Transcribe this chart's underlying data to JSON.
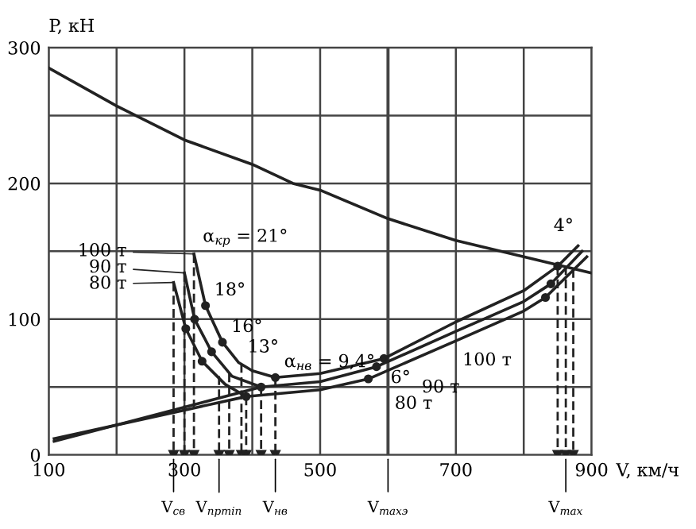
{
  "chart_data": {
    "type": "line",
    "xlabel": "V, км/ч",
    "ylabel": "P, кН",
    "xlim": [
      100,
      900
    ],
    "ylim": [
      0,
      300
    ],
    "xticks": [
      100,
      {
        "value": 200,
        "label": null
      },
      300,
      {
        "value": 400,
        "label": null
      },
      500,
      {
        "value": 600,
        "label": null
      },
      700,
      {
        "value": 800,
        "label": null
      },
      900
    ],
    "yticks": [
      0,
      {
        "value": 50,
        "label": null
      },
      100,
      {
        "value": 150,
        "label": null
      },
      200,
      {
        "value": 250,
        "label": null
      },
      300
    ],
    "grid": true,
    "legend": "left",
    "line_style": "solid",
    "marker": "none",
    "series": [
      {
        "color": "#222222",
        "x": [
          100,
          200,
          300,
          400,
          460,
          500,
          600,
          700,
          800,
          900
        ],
        "values": [
          285,
          257,
          232,
          214,
          200,
          195,
          174,
          158,
          146,
          134
        ]
      },
      {
        "name": "100 т",
        "color": "#222222",
        "x": [
          314,
          331,
          356,
          380,
          400,
          434,
          500,
          594,
          700,
          800,
          850,
          880
        ],
        "values": [
          148,
          110,
          83,
          68,
          62,
          57,
          60,
          71,
          98,
          121,
          139,
          154
        ]
      },
      {
        "name": "90 т",
        "color": "#222222",
        "x": [
          300,
          315,
          340,
          370,
          413,
          500,
          583,
          700,
          800,
          840,
          886
        ],
        "values": [
          134,
          100,
          76,
          58,
          50,
          54,
          65,
          91,
          113,
          126,
          150
        ]
      },
      {
        "name": "80 т",
        "color": "#222222",
        "x": [
          284,
          302,
          326,
          360,
          391,
          500,
          571,
          700,
          800,
          832,
          893
        ],
        "values": [
          127,
          93,
          69,
          52,
          43,
          48,
          56,
          84,
          106,
          116,
          146
        ]
      },
      {
        "color": "#222222",
        "x": [
          108,
          391
        ],
        "values": [
          12,
          43
        ]
      },
      {
        "color": "#222222",
        "x": [
          108,
          413
        ],
        "values": [
          10,
          50
        ]
      },
      {
        "type": "scatter",
        "marker": "circle",
        "color": "#222222",
        "x": [
          331,
          356,
          434,
          594,
          850,
          315,
          340,
          413,
          583,
          840,
          302,
          326,
          391,
          571,
          832
        ],
        "values": [
          110,
          83,
          57,
          71,
          139,
          100,
          76,
          50,
          65,
          126,
          93,
          69,
          43,
          56,
          116
        ]
      },
      {
        "color": "#222222",
        "line_style": "dashed",
        "marker": "triangle",
        "x": [
          284,
          284
        ],
        "values": [
          127,
          0
        ]
      },
      {
        "color": "#222222",
        "line_style": "dashed",
        "marker": "triangle",
        "x": [
          300,
          300
        ],
        "values": [
          134,
          0
        ]
      },
      {
        "color": "#222222",
        "line_style": "dashed",
        "marker": "triangle",
        "x": [
          314,
          314
        ],
        "values": [
          148,
          0
        ]
      },
      {
        "color": "#222222",
        "line_style": "dashed",
        "marker": "triangle",
        "x": [
          351,
          351
        ],
        "values": [
          58,
          0
        ]
      },
      {
        "color": "#222222",
        "line_style": "dashed",
        "marker": "triangle",
        "x": [
          366,
          366
        ],
        "values": [
          60,
          0
        ]
      },
      {
        "color": "#222222",
        "line_style": "dashed",
        "marker": "triangle",
        "x": [
          384,
          384
        ],
        "values": [
          67,
          0
        ]
      },
      {
        "color": "#222222",
        "line_style": "dashed",
        "marker": "triangle",
        "x": [
          391,
          391
        ],
        "values": [
          43,
          0
        ]
      },
      {
        "color": "#222222",
        "line_style": "dashed",
        "marker": "triangle",
        "x": [
          413,
          413
        ],
        "values": [
          50,
          0
        ]
      },
      {
        "color": "#222222",
        "line_style": "dashed",
        "marker": "triangle",
        "x": [
          434,
          434
        ],
        "values": [
          57,
          0
        ]
      },
      {
        "color": "#222222",
        "line_style": "dashed",
        "marker": "triangle",
        "x": [
          850,
          850
        ],
        "values": [
          139,
          0
        ]
      },
      {
        "color": "#222222",
        "line_style": "dashed",
        "marker": "triangle",
        "x": [
          862,
          862
        ],
        "values": [
          139,
          0
        ]
      },
      {
        "color": "#222222",
        "line_style": "dashed",
        "marker": "triangle",
        "x": [
          873,
          873
        ],
        "values": [
          137,
          0
        ]
      }
    ],
    "ref_lines": [
      {
        "axis": "x",
        "value": 600,
        "label": "V$_{maxэ}$",
        "color": "#444444"
      }
    ],
    "annotations": [
      {
        "text": "α$_{кр}$ = 21°",
        "x": 314,
        "y": 148
      },
      {
        "text": "18°",
        "x": 331,
        "y": 110
      },
      {
        "text": "16°",
        "x": 356,
        "y": 83
      },
      {
        "text": "13°",
        "x": 380,
        "y": 68
      },
      {
        "text": "α$_{нв}$ = 9,4°",
        "x": 434,
        "y": 57
      },
      {
        "text": "6°",
        "x": 594,
        "y": 71
      },
      {
        "text": "4°",
        "x": 880,
        "y": 154
      },
      {
        "text": "100 т",
        "x": 700,
        "y": 84
      },
      {
        "text": "90 т",
        "x": 640,
        "y": 64
      },
      {
        "text": "80 т",
        "x": 600,
        "y": 52
      },
      {
        "text": "V$_{св}$",
        "x": 284,
        "y": 0
      },
      {
        "text": "V$_{прmin}$",
        "x": 351,
        "y": 0
      },
      {
        "text": "V$_{нв}$",
        "x": 434,
        "y": 0
      },
      {
        "text": "V$_{max}$",
        "x": 862,
        "y": 0
      }
    ]
  }
}
